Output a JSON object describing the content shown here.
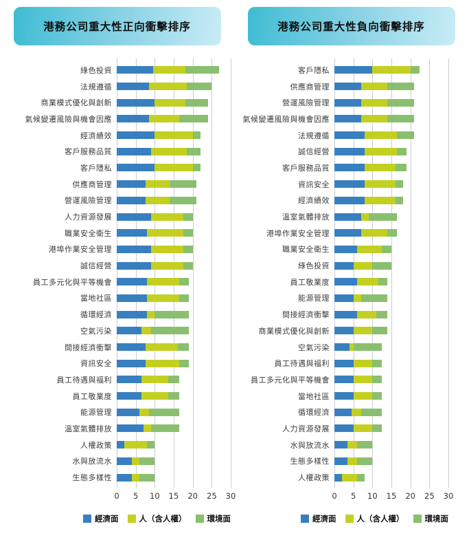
{
  "page_title": "港務公司重大性衝擊排序",
  "colors": {
    "economic": "#387fc0",
    "people": "#c3d021",
    "environment": "#8abf6f",
    "banner_gradient_start": "#3fbcd3",
    "banner_gradient_end": "#c8ecf5",
    "gridline": "#cccccc"
  },
  "chart_data": [
    {
      "type": "bar",
      "stacked": true,
      "orientation": "horizontal",
      "title": "港務公司重大性正向衝擊排序",
      "xlim": [
        0,
        30
      ],
      "xticks": [
        0,
        5,
        10,
        15,
        20,
        25,
        30
      ],
      "grid": true,
      "legend_position": "bottom",
      "categories": [
        "綠色投資",
        "法規遵循",
        "商業模式優化與創新",
        "氣候變遷風險與機會因應",
        "經濟績效",
        "客戶服務品質",
        "客戶隱私",
        "供應商管理",
        "營運風險管理",
        "人力資源發展",
        "職業安全衛生",
        "港埠作業安全管理",
        "誠信經營",
        "員工多元化與平等機會",
        "當地社區",
        "循環經濟",
        "空氣污染",
        "間接經濟衝擊",
        "資訊安全",
        "員工待遇與福利",
        "員工敬業度",
        "能源管理",
        "溫室氣體排放",
        "人權政策",
        "水與放流水",
        "生態多樣性"
      ],
      "series": [
        {
          "key": "economic",
          "name": "經濟面",
          "color": "#387fc0",
          "values": [
            9.5,
            8.5,
            10,
            8.5,
            10,
            9,
            10,
            7.5,
            7.5,
            9,
            8,
            9,
            9,
            8,
            8,
            8,
            6.5,
            7.5,
            7.5,
            6.5,
            6.5,
            6,
            7,
            2,
            4,
            4
          ]
        },
        {
          "key": "people",
          "name": "人（含人權）",
          "color": "#c3d021",
          "values": [
            8.5,
            10,
            8,
            8,
            10,
            9.5,
            10,
            6.5,
            6.5,
            8.5,
            9.5,
            8.5,
            8.5,
            8.5,
            8.5,
            2,
            2.5,
            8.5,
            9,
            7,
            7,
            2.5,
            2,
            6,
            2,
            2
          ]
        },
        {
          "key": "environment",
          "name": "環境面",
          "color": "#8abf6f",
          "values": [
            9,
            6.5,
            6,
            7.5,
            2,
            3.5,
            2,
            7,
            7,
            2.5,
            2.5,
            2.5,
            2.5,
            2.5,
            2.5,
            9,
            10,
            3,
            2.5,
            3,
            3,
            8,
            7.5,
            2,
            4,
            4
          ]
        }
      ]
    },
    {
      "type": "bar",
      "stacked": true,
      "orientation": "horizontal",
      "title": "港務公司重大性負向衝擊排序",
      "xlim": [
        0,
        30
      ],
      "xticks": [
        0,
        5,
        10,
        15,
        20,
        25,
        30
      ],
      "grid": true,
      "legend_position": "bottom",
      "categories": [
        "客戶隱私",
        "供應商管理",
        "營運風險管理",
        "氣候變遷風險與機會因應",
        "法規遵循",
        "誠信經營",
        "客戶服務品質",
        "資訊安全",
        "經濟績效",
        "溫室氣體排放",
        "港埠作業安全管理",
        "職業安全衛生",
        "綠色投資",
        "員工敬業度",
        "能源管理",
        "間接經濟衝擊",
        "商業模式優化與創新",
        "空氣污染",
        "員工待遇與福利",
        "員工多元化與平等機會",
        "當地社區",
        "循環經濟",
        "人力資源發展",
        "水與放流水",
        "生態多樣性",
        "人權政策"
      ],
      "series": [
        {
          "key": "economic",
          "name": "經濟面",
          "color": "#387fc0",
          "values": [
            10,
            7,
            7,
            7,
            8,
            8,
            8,
            8,
            8,
            7,
            7,
            6,
            5,
            6,
            5,
            6,
            5,
            4,
            5,
            5,
            5,
            4.5,
            5,
            3.5,
            3.5,
            2
          ]
        },
        {
          "key": "people",
          "name": "人（含人權）",
          "color": "#c3d021",
          "values": [
            10,
            7,
            7,
            7,
            8.5,
            8.5,
            8,
            8,
            8,
            2,
            7,
            6.5,
            5,
            5.5,
            2,
            5,
            5,
            1,
            5,
            5,
            5,
            2.5,
            5,
            2.5,
            2.5,
            4
          ]
        },
        {
          "key": "environment",
          "name": "環境面",
          "color": "#8abf6f",
          "values": [
            2.5,
            7,
            7,
            7,
            4.5,
            2.5,
            3,
            2,
            2,
            7.5,
            2.5,
            2.5,
            5,
            2.5,
            7,
            3,
            4,
            7.5,
            2.5,
            2.5,
            2.5,
            5.5,
            2.5,
            4,
            4,
            2
          ]
        }
      ]
    }
  ]
}
